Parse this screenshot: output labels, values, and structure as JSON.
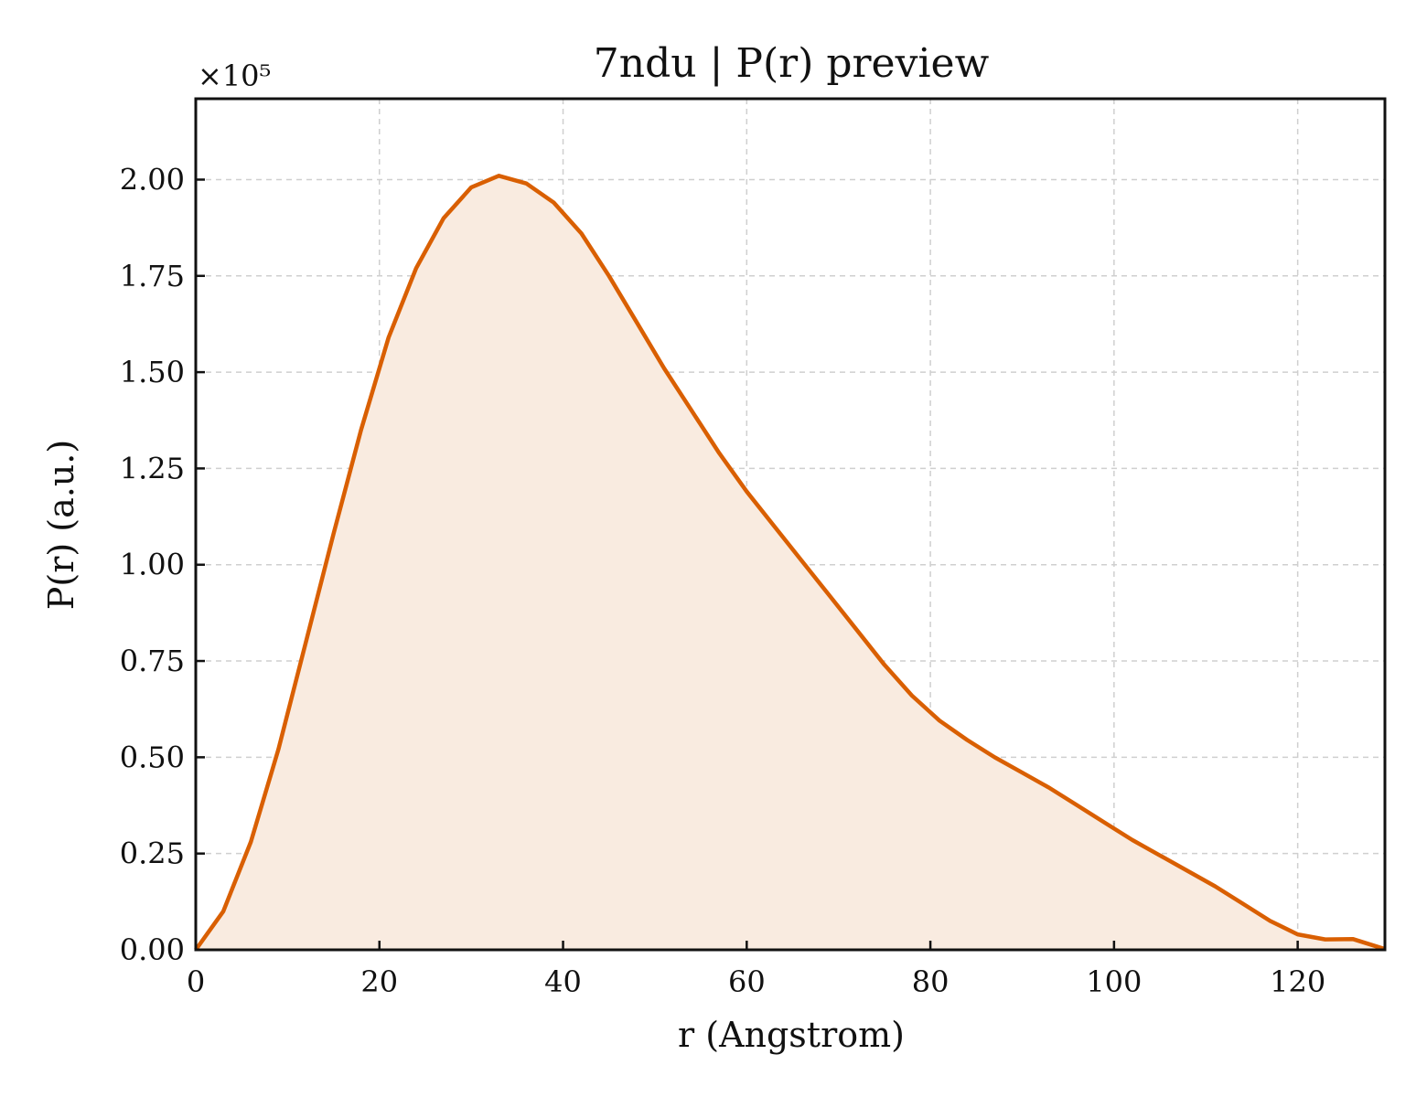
{
  "chart_data": {
    "type": "area",
    "title": "7ndu | P(r) preview",
    "xlabel": "r (Angstrom)",
    "ylabel": "P(r) (a.u.)",
    "y_multiplier_label": "×10⁵",
    "xlim": [
      0,
      129.5
    ],
    "ylim": [
      0,
      2.21
    ],
    "x_ticks": [
      0,
      20,
      40,
      60,
      80,
      100,
      120
    ],
    "x_tick_labels": [
      "0",
      "20",
      "40",
      "60",
      "80",
      "100",
      "120"
    ],
    "y_ticks": [
      0,
      0.25,
      0.5,
      0.75,
      1.0,
      1.25,
      1.5,
      1.75,
      2.0
    ],
    "y_tick_labels": [
      "0.00",
      "0.25",
      "0.50",
      "0.75",
      "1.00",
      "1.25",
      "1.50",
      "1.75",
      "2.00"
    ],
    "grid": true,
    "series": [
      {
        "color": "#d95f02",
        "fill_color": "#f9ebe0",
        "x": [
          0,
          3,
          6,
          9,
          12,
          15,
          18,
          21,
          24,
          27,
          30,
          33,
          36,
          39,
          42,
          45,
          48,
          51,
          54,
          57,
          60,
          63,
          66,
          69,
          72,
          75,
          78,
          81,
          84,
          87,
          90,
          93,
          96,
          99,
          102,
          105,
          108,
          111,
          114,
          117,
          120,
          123,
          126,
          129.5
        ],
        "y": [
          0.0,
          0.1,
          0.28,
          0.52,
          0.8,
          1.08,
          1.35,
          1.59,
          1.77,
          1.9,
          1.98,
          2.01,
          1.99,
          1.94,
          1.86,
          1.75,
          1.63,
          1.51,
          1.4,
          1.29,
          1.19,
          1.1,
          1.01,
          0.92,
          0.83,
          0.74,
          0.66,
          0.595,
          0.545,
          0.5,
          0.46,
          0.42,
          0.375,
          0.33,
          0.285,
          0.245,
          0.205,
          0.165,
          0.12,
          0.075,
          0.04,
          0.027,
          0.028,
          0.002
        ]
      }
    ]
  }
}
